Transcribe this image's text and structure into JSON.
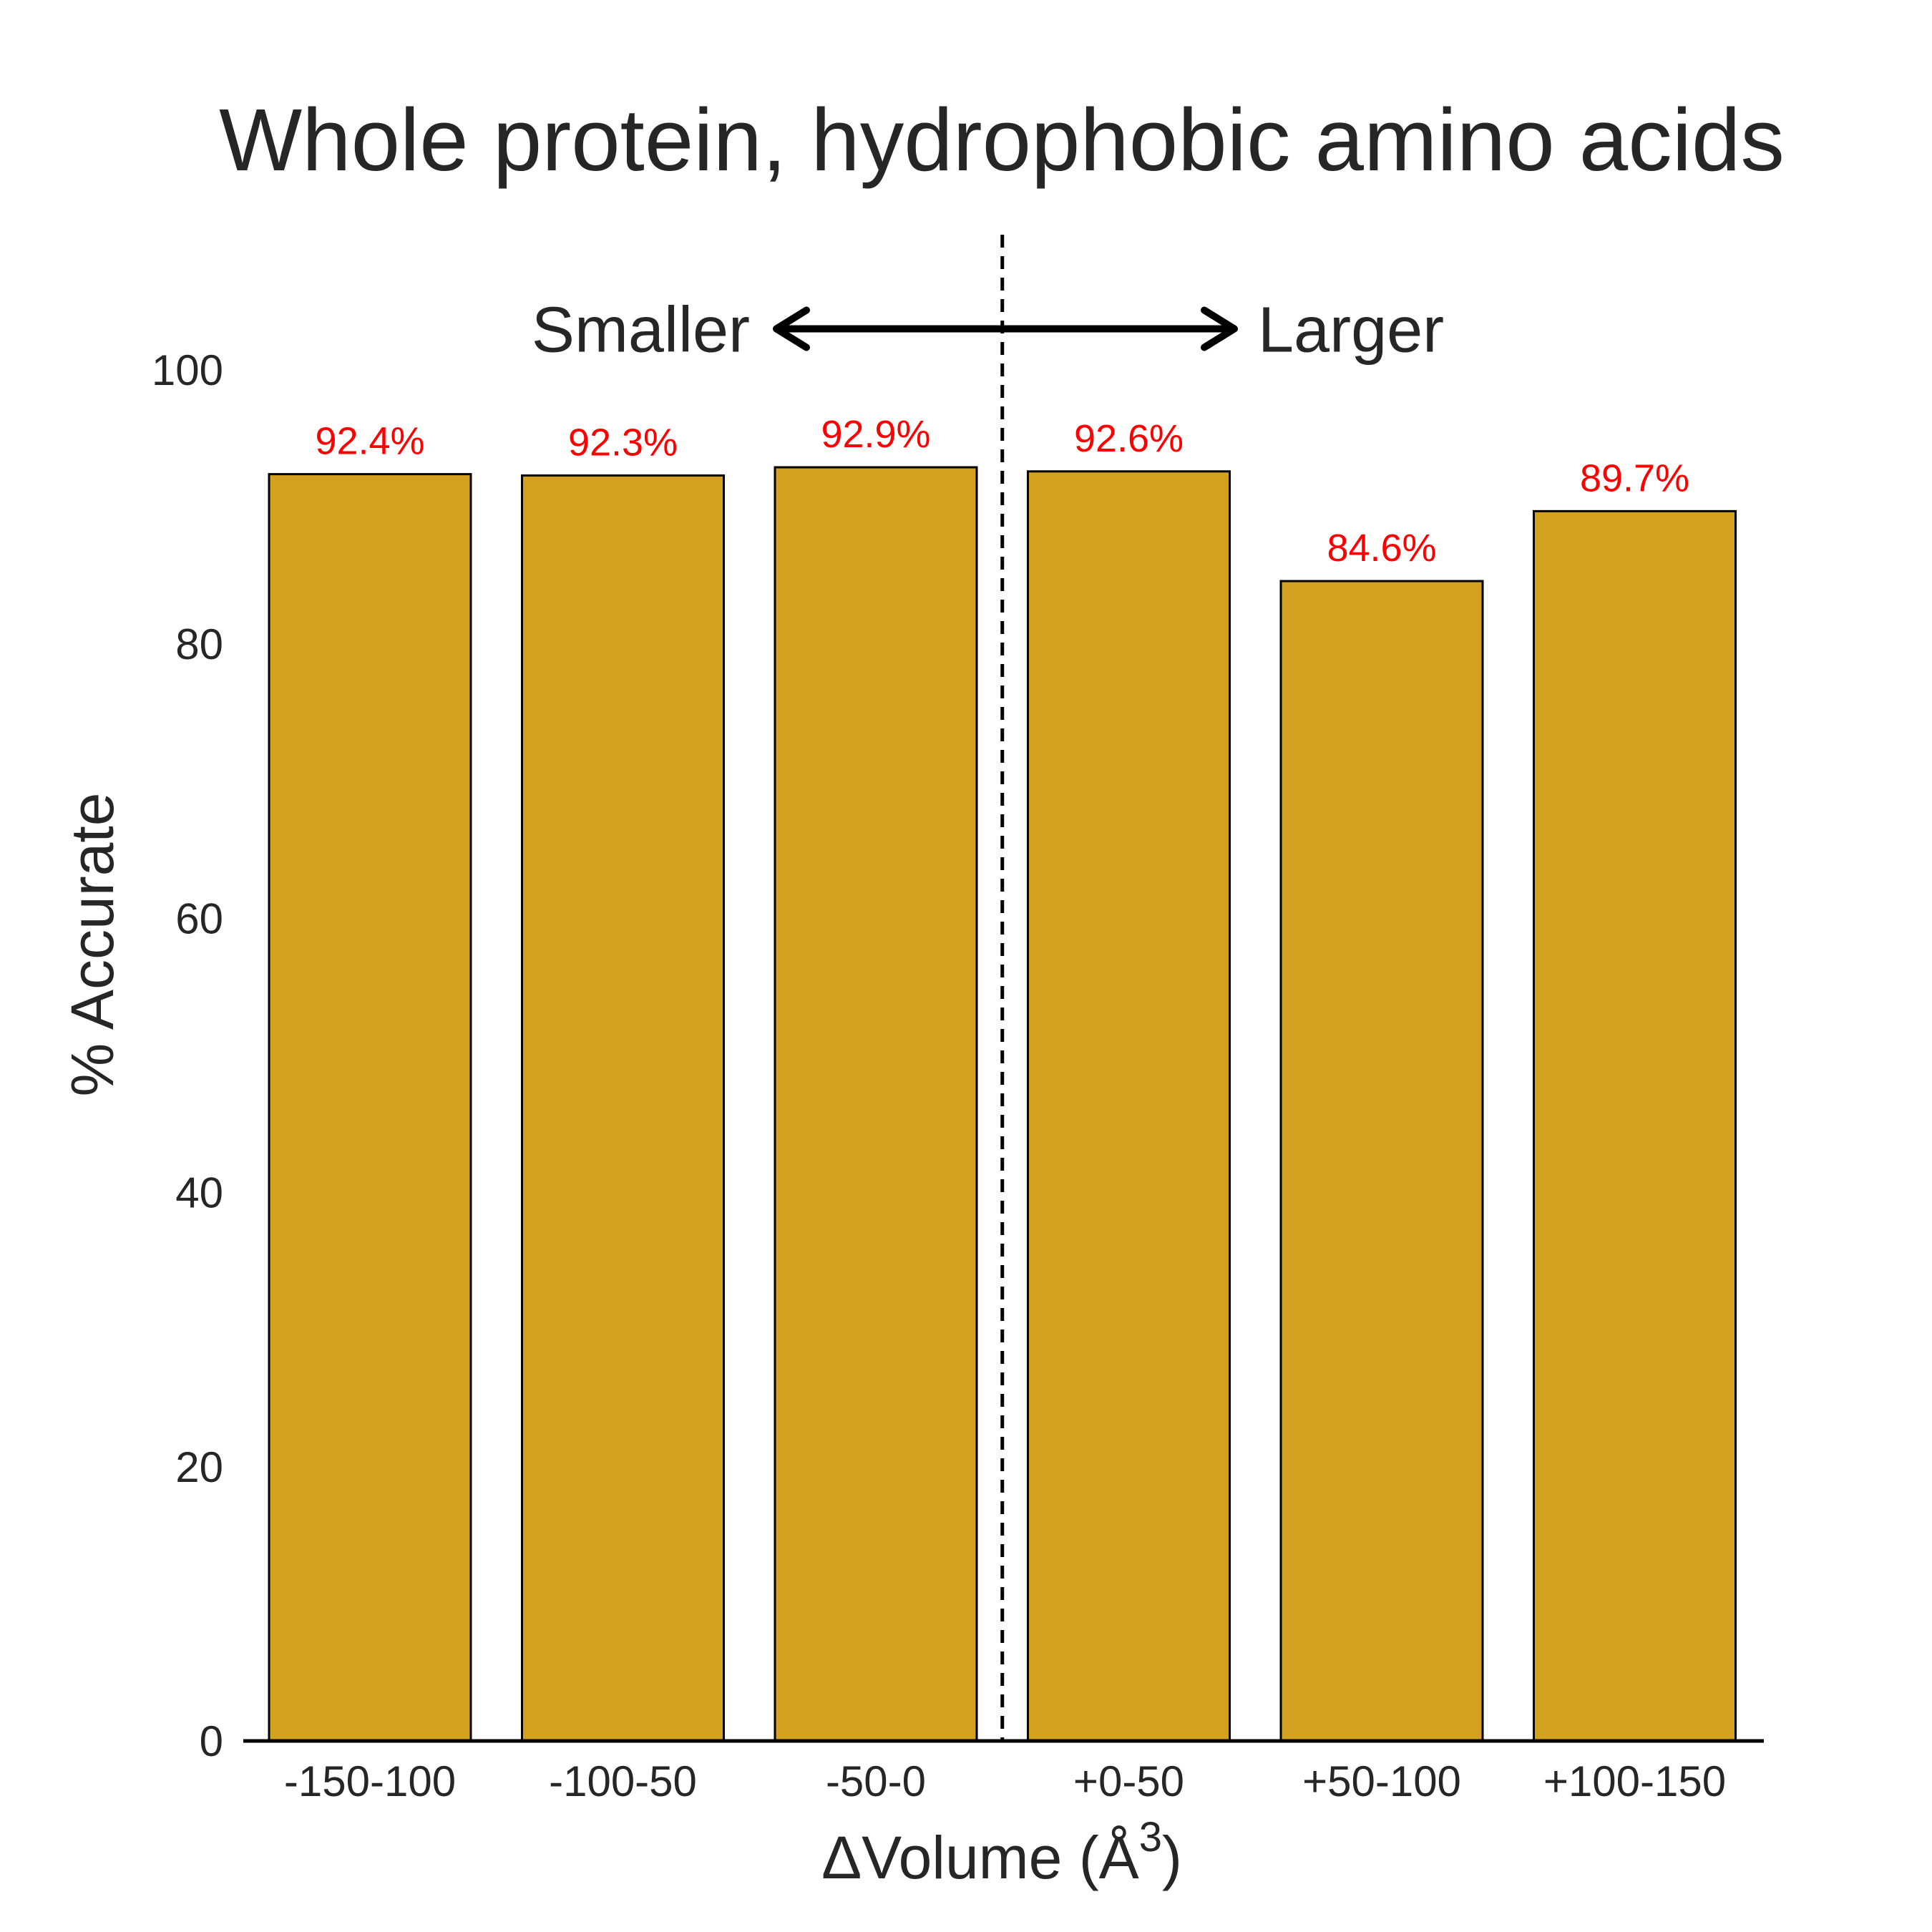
{
  "chart_data": {
    "type": "bar",
    "title": "Whole protein, hydrophobic amino acids",
    "xlabel": "ΔVolume (Å",
    "xlabel_superscript": "3",
    "xlabel_close": ")",
    "ylabel": "% Accurate",
    "categories": [
      "-150-100",
      "-100-50",
      "-50-0",
      "+0-50",
      "+50-100",
      "+100-150"
    ],
    "values": [
      92.4,
      92.3,
      92.9,
      92.6,
      84.6,
      89.7
    ],
    "data_labels": [
      "92.4%",
      "92.3%",
      "92.9%",
      "92.6%",
      "84.6%",
      "89.7%"
    ],
    "ylim": [
      0,
      110
    ],
    "yticks": [
      "0",
      "20",
      "40",
      "60",
      "80",
      "100"
    ],
    "ytick_values": [
      0,
      20,
      40,
      60,
      80,
      100
    ],
    "divider_between": [
      2,
      3
    ],
    "annotations": {
      "left": "Smaller",
      "right": "Larger",
      "arrow_value": 103
    },
    "bar_color": "#d4a020",
    "bar_edge_color": "#000000",
    "label_color": "#ff0000",
    "grid": false
  }
}
